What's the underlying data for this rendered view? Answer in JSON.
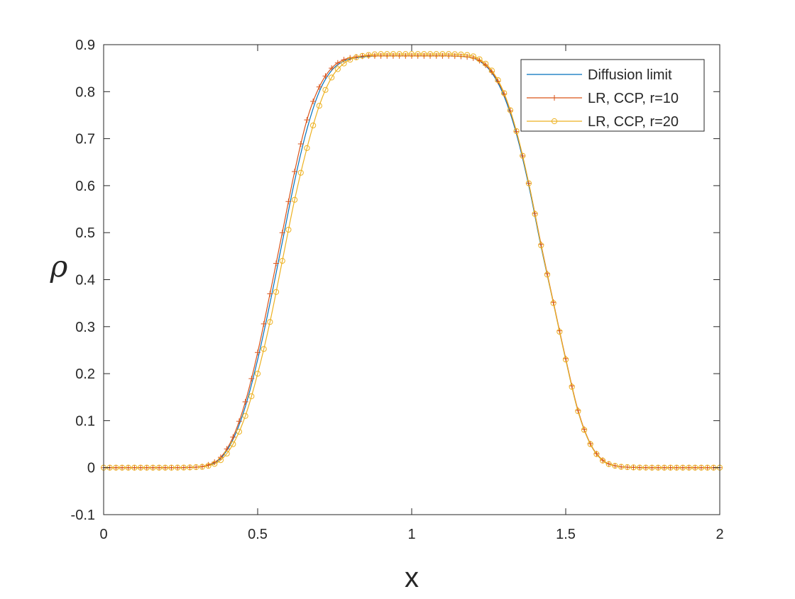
{
  "chart_data": {
    "type": "line",
    "title": "",
    "xlabel": "x",
    "ylabel": "ρ",
    "xlim": [
      0,
      2
    ],
    "ylim": [
      -0.1,
      0.9
    ],
    "x_ticks": [
      "0",
      "0.5",
      "1",
      "1.5",
      "2"
    ],
    "y_ticks": [
      "-0.1",
      "0",
      "0.1",
      "0.2",
      "0.3",
      "0.4",
      "0.5",
      "0.6",
      "0.7",
      "0.8",
      "0.9"
    ],
    "grid": false,
    "legend_position": "top-right",
    "series": [
      {
        "name": "Diffusion limit",
        "color": "#0072BD",
        "marker": "none",
        "x": [
          0,
          0.1,
          0.2,
          0.3,
          0.34,
          0.38,
          0.42,
          0.46,
          0.5,
          0.54,
          0.58,
          0.62,
          0.66,
          0.7,
          0.74,
          0.78,
          0.82,
          0.86,
          0.9,
          1.0,
          1.1,
          1.18,
          1.22,
          1.26,
          1.3,
          1.34,
          1.38,
          1.42,
          1.46,
          1.5,
          1.54,
          1.58,
          1.62,
          1.66,
          1.7,
          1.8,
          1.9,
          2.0
        ],
        "y": [
          0,
          0,
          0,
          0.001,
          0.005,
          0.02,
          0.06,
          0.13,
          0.23,
          0.35,
          0.48,
          0.61,
          0.72,
          0.8,
          0.845,
          0.865,
          0.872,
          0.875,
          0.876,
          0.876,
          0.876,
          0.874,
          0.865,
          0.84,
          0.79,
          0.71,
          0.6,
          0.47,
          0.35,
          0.23,
          0.12,
          0.05,
          0.015,
          0.004,
          0.001,
          0,
          0,
          0
        ]
      },
      {
        "name": "LR, CCP, r=10",
        "color": "#D95319",
        "marker": "plus",
        "x": [
          0,
          0.1,
          0.2,
          0.3,
          0.34,
          0.38,
          0.42,
          0.46,
          0.5,
          0.54,
          0.58,
          0.62,
          0.66,
          0.7,
          0.74,
          0.78,
          0.82,
          0.86,
          0.9,
          1.0,
          1.1,
          1.18,
          1.22,
          1.26,
          1.3,
          1.34,
          1.38,
          1.42,
          1.46,
          1.5,
          1.54,
          1.58,
          1.62,
          1.66,
          1.7,
          1.8,
          1.9,
          2.0
        ],
        "y": [
          0,
          0,
          0,
          0.001,
          0.006,
          0.022,
          0.065,
          0.14,
          0.245,
          0.37,
          0.5,
          0.63,
          0.74,
          0.81,
          0.85,
          0.868,
          0.874,
          0.876,
          0.876,
          0.876,
          0.876,
          0.874,
          0.866,
          0.842,
          0.795,
          0.715,
          0.605,
          0.475,
          0.352,
          0.232,
          0.122,
          0.051,
          0.016,
          0.004,
          0.001,
          0,
          0,
          0
        ]
      },
      {
        "name": "LR, CCP, r=20",
        "color": "#EDB120",
        "marker": "circle",
        "x": [
          0,
          0.1,
          0.2,
          0.3,
          0.34,
          0.38,
          0.42,
          0.46,
          0.5,
          0.54,
          0.58,
          0.62,
          0.66,
          0.7,
          0.74,
          0.78,
          0.82,
          0.86,
          0.9,
          1.0,
          1.1,
          1.18,
          1.22,
          1.26,
          1.3,
          1.34,
          1.38,
          1.42,
          1.46,
          1.5,
          1.54,
          1.58,
          1.62,
          1.66,
          1.7,
          1.8,
          1.9,
          2.0
        ],
        "y": [
          0,
          0,
          0,
          0.001,
          0.004,
          0.016,
          0.05,
          0.11,
          0.2,
          0.31,
          0.44,
          0.57,
          0.68,
          0.77,
          0.83,
          0.86,
          0.873,
          0.878,
          0.88,
          0.88,
          0.88,
          0.878,
          0.869,
          0.845,
          0.797,
          0.716,
          0.605,
          0.473,
          0.35,
          0.23,
          0.12,
          0.05,
          0.015,
          0.004,
          0.001,
          0,
          0,
          0
        ]
      }
    ]
  }
}
